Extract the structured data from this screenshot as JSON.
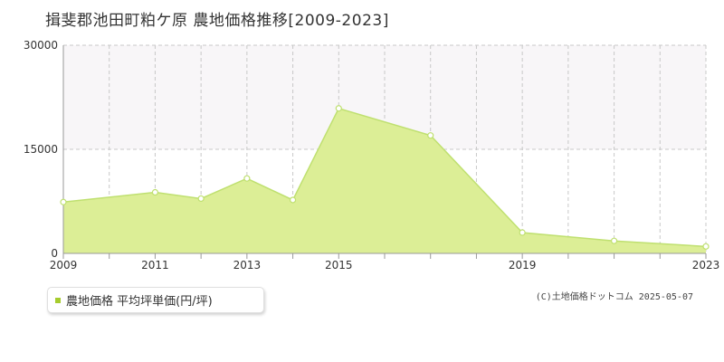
{
  "header": {
    "title": "揖斐郡池田町粕ケ原 農地価格推移[2009-2023]"
  },
  "legend": {
    "label": "農地価格 平均坪単価(円/坪)",
    "color": "#a6cc2e"
  },
  "footer": {
    "copyright": "(C)土地価格ドットコム 2025-05-07"
  },
  "colors": {
    "area_fill": "#dcee96",
    "line": "#bfe070",
    "band": "#f8f6f8",
    "grid": "#c8c8c8",
    "axis": "#999999"
  },
  "chart_data": {
    "type": "area",
    "title": "揖斐郡池田町粕ケ原 農地価格推移[2009-2023]",
    "xlabel": "",
    "ylabel": "",
    "x": [
      2009,
      2011,
      2012,
      2013,
      2014,
      2015,
      2017,
      2019,
      2021,
      2023
    ],
    "series": [
      {
        "name": "農地価格 平均坪単価(円/坪)",
        "values": [
          7400,
          8800,
          7900,
          10800,
          7700,
          20900,
          17000,
          3000,
          1800,
          1000
        ]
      }
    ],
    "xlim": [
      2009,
      2023
    ],
    "ylim": [
      0,
      30000
    ],
    "xticks": [
      "2009",
      "2011",
      "2013",
      "2015",
      "2019",
      "2023"
    ],
    "yticks": [
      "0",
      "15000",
      "30000"
    ],
    "grid": true,
    "legend_position": "bottom-left"
  }
}
